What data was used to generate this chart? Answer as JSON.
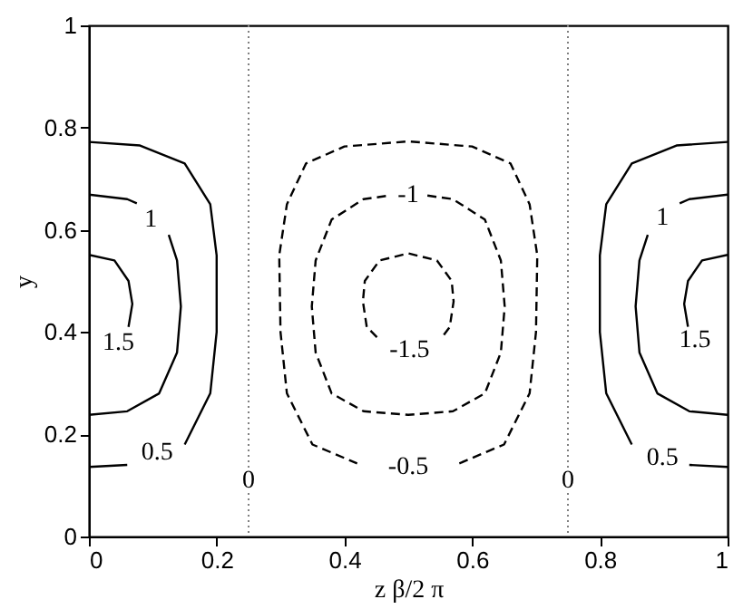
{
  "chart_data": {
    "type": "line",
    "xlabel": "z β/2 π",
    "ylabel": "y",
    "xlim": [
      0,
      1
    ],
    "ylim": [
      0,
      1
    ],
    "xticks": [
      0,
      0.2,
      0.4,
      0.6,
      0.8,
      1
    ],
    "yticks": [
      0,
      0.2,
      0.4,
      0.6,
      0.8,
      1
    ],
    "grid": false,
    "series": [
      {
        "color": "#000000",
        "line_style": "dashed",
        "x": [
          0.58,
          0.65,
          0.69,
          0.7,
          0.702,
          0.69,
          0.66,
          0.6,
          0.5,
          0.4,
          0.34,
          0.31,
          0.298,
          0.3,
          0.31,
          0.35,
          0.42
        ],
        "values": [
          0.143,
          0.18,
          0.28,
          0.4,
          0.55,
          0.65,
          0.73,
          0.763,
          0.773,
          0.763,
          0.73,
          0.65,
          0.55,
          0.4,
          0.28,
          0.18,
          0.143
        ]
      },
      {
        "color": "#000000",
        "line_style": "dashed",
        "x": [
          0.53,
          0.57,
          0.62,
          0.645,
          0.651,
          0.645,
          0.62,
          0.57,
          0.5,
          0.43,
          0.38,
          0.355,
          0.349,
          0.355,
          0.38,
          0.43,
          0.47
        ],
        "values": [
          0.667,
          0.66,
          0.62,
          0.54,
          0.45,
          0.36,
          0.28,
          0.245,
          0.238,
          0.245,
          0.28,
          0.36,
          0.45,
          0.54,
          0.62,
          0.66,
          0.667
        ]
      },
      {
        "color": "#000000",
        "line_style": "dashed",
        "x": [
          0.451,
          0.435,
          0.429,
          0.432,
          0.455,
          0.5,
          0.545,
          0.568,
          0.571,
          0.565,
          0.553
        ],
        "values": [
          0.39,
          0.41,
          0.46,
          0.5,
          0.54,
          0.554,
          0.54,
          0.5,
          0.46,
          0.41,
          0.39
        ]
      },
      {
        "color": "#000000",
        "line_style": "solid",
        "x": [
          0,
          0.08,
          0.15,
          0.19,
          0.2,
          0.2,
          0.19,
          0.15,
          0.105,
          0.06,
          0
        ],
        "values": [
          0.772,
          0.765,
          0.73,
          0.65,
          0.55,
          0.4,
          0.28,
          0.18,
          null,
          0.14,
          0.136
        ]
      },
      {
        "color": "#000000",
        "line_style": "solid",
        "x": [
          0,
          0.06,
          0.075,
          0.1,
          0.125,
          0.138,
          0.144,
          0.138,
          0.11,
          0.06,
          0
        ],
        "values": [
          0.669,
          0.66,
          0.652,
          null,
          0.59,
          0.54,
          0.45,
          0.36,
          0.28,
          0.245,
          0.238
        ]
      },
      {
        "color": "#000000",
        "line_style": "solid",
        "x": [
          0,
          0.04,
          0.062,
          0.068,
          0.062
        ],
        "values": [
          0.551,
          0.54,
          0.5,
          0.455,
          0.41
        ]
      },
      {
        "color": "#000000",
        "line_style": "solid",
        "x": [
          1,
          0.92,
          0.85,
          0.81,
          0.8,
          0.8,
          0.81,
          0.85,
          0.895,
          0.94,
          1
        ],
        "values": [
          0.772,
          0.765,
          0.73,
          0.65,
          0.55,
          0.4,
          0.28,
          0.18,
          null,
          0.14,
          0.136
        ]
      },
      {
        "color": "#000000",
        "line_style": "solid",
        "x": [
          1,
          0.94,
          0.925,
          0.9,
          0.875,
          0.862,
          0.856,
          0.862,
          0.89,
          0.94,
          1
        ],
        "values": [
          0.669,
          0.66,
          0.652,
          null,
          0.59,
          0.54,
          0.45,
          0.36,
          0.28,
          0.245,
          0.238
        ]
      },
      {
        "color": "#000000",
        "line_style": "solid",
        "x": [
          1,
          0.96,
          0.938,
          0.932,
          0.938
        ],
        "values": [
          0.551,
          0.54,
          0.5,
          0.455,
          0.41
        ]
      }
    ],
    "ref_lines": [
      {
        "axis": "x",
        "value": 0.25,
        "color": "#808080",
        "line_style": "dotted"
      },
      {
        "axis": "x",
        "value": 0.75,
        "color": "#808080",
        "line_style": "dotted"
      }
    ],
    "annotations": [
      {
        "text": "-1",
        "x": 0.5,
        "y": 0.669
      },
      {
        "text": "-1.5",
        "x": 0.502,
        "y": 0.366
      },
      {
        "text": "-0.5",
        "x": 0.5,
        "y": 0.137
      },
      {
        "text": "1",
        "x": 0.097,
        "y": 0.62
      },
      {
        "text": "1.5",
        "x": 0.046,
        "y": 0.38
      },
      {
        "text": "0.5",
        "x": 0.107,
        "y": 0.165
      },
      {
        "text": "1",
        "x": 0.898,
        "y": 0.624
      },
      {
        "text": "1.5",
        "x": 0.949,
        "y": 0.385
      },
      {
        "text": "0.5",
        "x": 0.898,
        "y": 0.154
      },
      {
        "text": "0",
        "x": 0.25,
        "y": 0.11
      },
      {
        "text": "0",
        "x": 0.75,
        "y": 0.11
      }
    ]
  }
}
